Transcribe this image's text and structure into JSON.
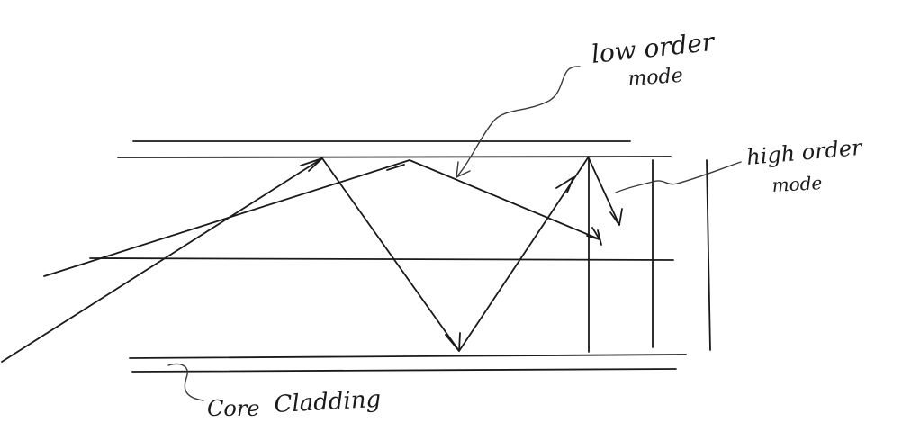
{
  "labels": {
    "low_order_line1": "low order",
    "low_order_line2": "mode",
    "high_order_line1": "high order",
    "high_order_line2": "mode",
    "core": "Core",
    "cladding": "Cladding"
  }
}
